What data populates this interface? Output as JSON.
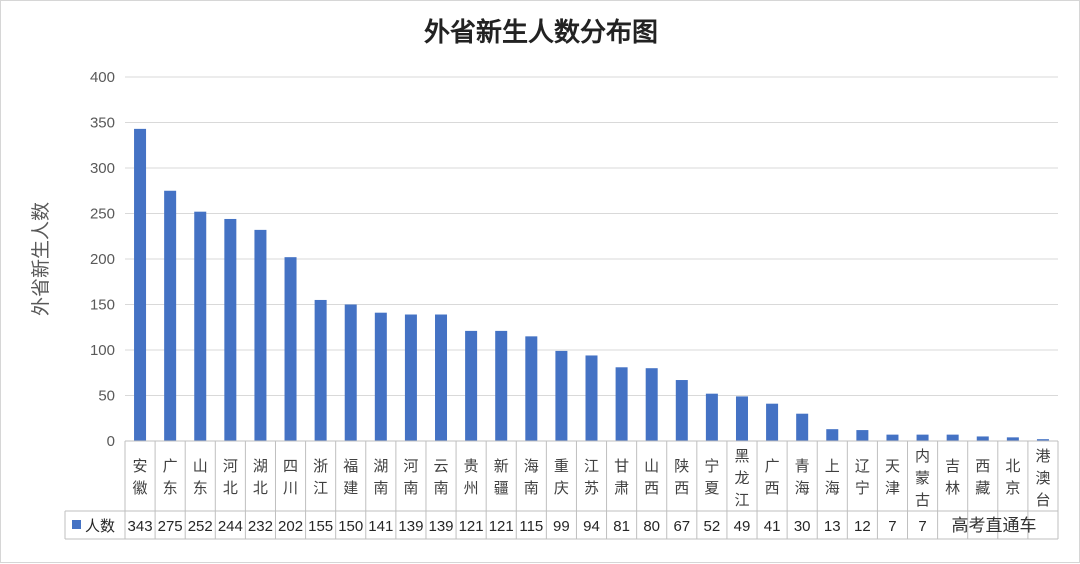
{
  "chart_data": {
    "type": "bar",
    "title": "外省新生人数分布图",
    "ylabel": "外省新生人数",
    "xlabel": "",
    "ylim": [
      0,
      400
    ],
    "yticks": [
      0,
      50,
      100,
      150,
      200,
      250,
      300,
      350,
      400
    ],
    "grid": true,
    "legend": "bottom-left (in data table)",
    "color": "#4472C4",
    "categories": [
      "安徽",
      "广东",
      "山东",
      "河北",
      "湖北",
      "四川",
      "浙江",
      "福建",
      "湖南",
      "河南",
      "云南",
      "贵州",
      "新疆",
      "海南",
      "重庆",
      "江苏",
      "甘肃",
      "山西",
      "陕西",
      "宁夏",
      "黑龙江",
      "广西",
      "青海",
      "上海",
      "辽宁",
      "天津",
      "内蒙古",
      "吉林",
      "西藏",
      "北京",
      "港澳台"
    ],
    "series": [
      {
        "name": "人数",
        "values": [
          343,
          275,
          252,
          244,
          232,
          202,
          155,
          150,
          141,
          139,
          139,
          121,
          121,
          115,
          99,
          94,
          81,
          80,
          67,
          52,
          49,
          41,
          30,
          13,
          12,
          7,
          7,
          7,
          5,
          4,
          2
        ]
      }
    ],
    "table_values": [
      "343",
      "275",
      "252",
      "244",
      "232",
      "202",
      "155",
      "150",
      "141",
      "139",
      "139",
      "121",
      "121",
      "115",
      "99",
      "94",
      "81",
      "80",
      "67",
      "52",
      "49",
      "41",
      "30",
      "13",
      "12",
      "7",
      "7",
      "",
      "",
      "",
      ""
    ]
  },
  "watermark": "高考直通车"
}
